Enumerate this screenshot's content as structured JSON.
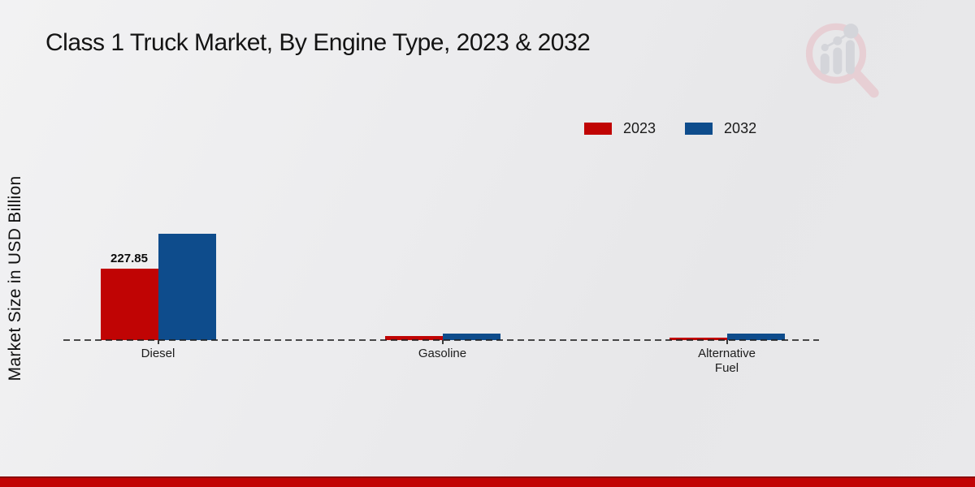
{
  "header": {
    "title": "Class 1 Truck Market, By Engine Type, 2023 & 2032"
  },
  "legend": {
    "items": [
      {
        "label": "2023",
        "color": "#c00404"
      },
      {
        "label": "2032",
        "color": "#0e4c8c"
      }
    ]
  },
  "chart_data": {
    "type": "bar",
    "categories": [
      "Diesel",
      "Gasoline",
      "Alternative Fuel"
    ],
    "series": [
      {
        "name": "2023",
        "color": "#c00404",
        "values": [
          227.85,
          12,
          8
        ]
      },
      {
        "name": "2032",
        "color": "#0e4c8c",
        "values": [
          339,
          21.5,
          21.5
        ]
      }
    ],
    "title": "Class 1 Truck Market, By Engine Type, 2023 & 2032",
    "xlabel": "",
    "ylabel": "Market Size in USD Billion",
    "ylim": [
      0,
      360
    ],
    "grid": false,
    "legend_position": "top-right",
    "baseline_style": "dashed",
    "annotations": [
      {
        "series": "2023",
        "category": "Diesel",
        "text": "227.85"
      }
    ]
  },
  "watermark": {
    "name": "growth-chart-magnifier-logo"
  },
  "footer": {
    "band_color": "#c20404",
    "band_top_color": "#8c0b0b"
  }
}
